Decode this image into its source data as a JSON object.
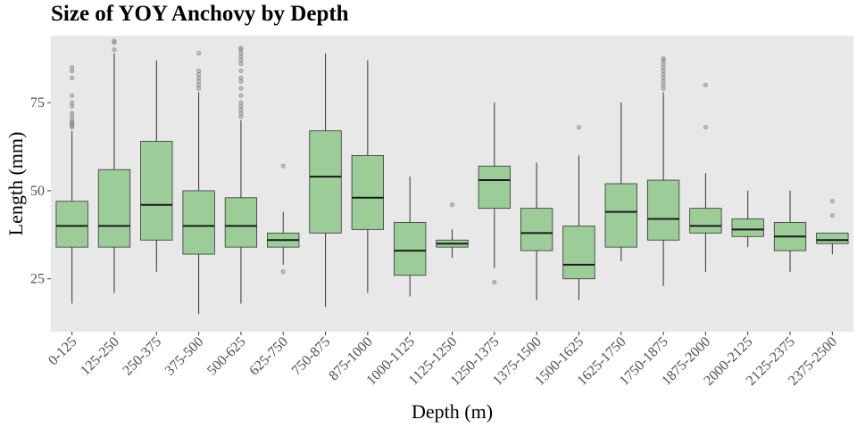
{
  "chart_data": {
    "type": "boxplot",
    "title": "Size of YOY Anchovy by Depth",
    "xlabel": "Depth (m)",
    "ylabel": "Length (mm)",
    "ylim": [
      10,
      94
    ],
    "yticks": [
      25,
      50,
      75
    ],
    "grid": false,
    "panel_color": "#e8e8e8",
    "box_color": "#9ccd98",
    "outlier_color": "#999999",
    "categories": [
      "0-125",
      "125-250",
      "250-375",
      "375-500",
      "500-625",
      "625-750",
      "750-875",
      "875-1000",
      "1000-1125",
      "1125-1250",
      "1250-1375",
      "1375-1500",
      "1500-1625",
      "1625-1750",
      "1750-1875",
      "1875-2000",
      "2000-2125",
      "2125-2375",
      "2375-2500"
    ],
    "boxes": [
      {
        "whisker_low": 18,
        "q1": 34,
        "median": 40,
        "q3": 47,
        "whisker_high": 67,
        "outliers": [
          68,
          68.5,
          69,
          69.5,
          70,
          71,
          72,
          74,
          75,
          77,
          82,
          84,
          85
        ]
      },
      {
        "whisker_low": 21,
        "q1": 34,
        "median": 40,
        "q3": 56,
        "whisker_high": 89,
        "outliers": [
          90,
          92,
          92.5
        ]
      },
      {
        "whisker_low": 27,
        "q1": 36,
        "median": 46,
        "q3": 64,
        "whisker_high": 87,
        "outliers": []
      },
      {
        "whisker_low": 15,
        "q1": 32,
        "median": 40,
        "q3": 50,
        "whisker_high": 78,
        "outliers": [
          79,
          80,
          81,
          82,
          83,
          84,
          89
        ]
      },
      {
        "whisker_low": 18,
        "q1": 34,
        "median": 40,
        "q3": 48,
        "whisker_high": 70,
        "outliers": [
          71,
          72,
          73,
          74,
          75,
          77,
          79,
          81,
          82,
          84,
          86,
          87,
          88,
          89,
          90,
          90.5
        ]
      },
      {
        "whisker_low": 29,
        "q1": 34,
        "median": 36,
        "q3": 38,
        "whisker_high": 44,
        "outliers": [
          27,
          57
        ]
      },
      {
        "whisker_low": 17,
        "q1": 38,
        "median": 54,
        "q3": 67,
        "whisker_high": 89,
        "outliers": []
      },
      {
        "whisker_low": 21,
        "q1": 39,
        "median": 48,
        "q3": 60,
        "whisker_high": 87,
        "outliers": []
      },
      {
        "whisker_low": 20,
        "q1": 26,
        "median": 33,
        "q3": 41,
        "whisker_high": 54,
        "outliers": []
      },
      {
        "whisker_low": 31,
        "q1": 34,
        "median": 35,
        "q3": 36,
        "whisker_high": 39,
        "outliers": [
          46
        ]
      },
      {
        "whisker_low": 28,
        "q1": 45,
        "median": 53,
        "q3": 57,
        "whisker_high": 75,
        "outliers": [
          24
        ]
      },
      {
        "whisker_low": 19,
        "q1": 33,
        "median": 38,
        "q3": 45,
        "whisker_high": 58,
        "outliers": []
      },
      {
        "whisker_low": 19,
        "q1": 25,
        "median": 29,
        "q3": 40,
        "whisker_high": 60,
        "outliers": [
          68
        ]
      },
      {
        "whisker_low": 30,
        "q1": 34,
        "median": 44,
        "q3": 52,
        "whisker_high": 75,
        "outliers": []
      },
      {
        "whisker_low": 23,
        "q1": 36,
        "median": 42,
        "q3": 53,
        "whisker_high": 78,
        "outliers": [
          79,
          80,
          81,
          82,
          83,
          84,
          85,
          86,
          87,
          87.5
        ]
      },
      {
        "whisker_low": 27,
        "q1": 38,
        "median": 40,
        "q3": 45,
        "whisker_high": 55,
        "outliers": [
          68,
          80
        ]
      },
      {
        "whisker_low": 34,
        "q1": 37,
        "median": 39,
        "q3": 42,
        "whisker_high": 50,
        "outliers": []
      },
      {
        "whisker_low": 27,
        "q1": 33,
        "median": 37,
        "q3": 41,
        "whisker_high": 50,
        "outliers": []
      },
      {
        "whisker_low": 32,
        "q1": 35,
        "median": 36,
        "q3": 38,
        "whisker_high": 38,
        "outliers": [
          43,
          47
        ]
      }
    ]
  }
}
